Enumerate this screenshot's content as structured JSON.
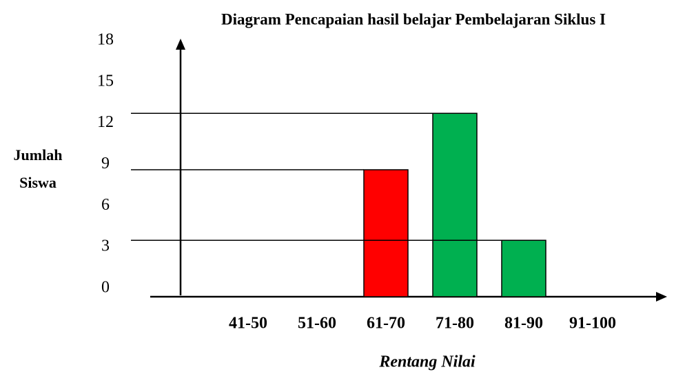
{
  "chart_data": {
    "type": "bar",
    "title": "Diagram Pencapaian hasil belajar Pembelajaran Siklus I",
    "y_label": "Jumlah Siswa",
    "x_label": "Rentang Nilai",
    "categories": [
      "41-50",
      "51-60",
      "61-70",
      "71-80",
      "81-90",
      "91-100"
    ],
    "values": [
      0,
      0,
      9,
      13,
      4,
      0
    ],
    "colors": [
      "#00b050",
      "#00b050",
      "#ff0000",
      "#00b050",
      "#00b050",
      "#00b050"
    ],
    "ylim": [
      0,
      18
    ],
    "yticks": [
      0,
      3,
      6,
      9,
      12,
      15,
      18
    ],
    "grid": false
  }
}
